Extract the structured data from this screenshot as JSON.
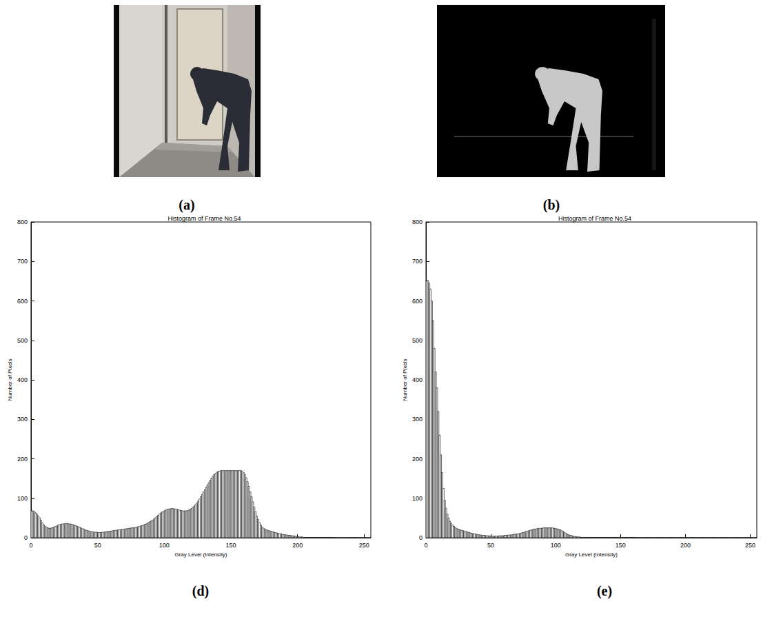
{
  "images": [
    {
      "label": "(a)"
    },
    {
      "label": "(b)"
    }
  ],
  "chart_data": [
    {
      "type": "histogram",
      "title": "Histogram of Frame No.54",
      "x_label": "Gray Level (Intensity)",
      "y_label": "Number of Pixels",
      "annotations": [
        "(d)"
      ],
      "color": "#000000",
      "grid": false,
      "xlim": [
        0,
        255
      ],
      "xticks": [
        0,
        50,
        100,
        150,
        200,
        250
      ],
      "ylim": [
        0,
        800
      ],
      "yticks": [
        0,
        100,
        200,
        300,
        400,
        500,
        600,
        700,
        800
      ],
      "bins": [
        0,
        1,
        2,
        3,
        4,
        5,
        6,
        7,
        8,
        9,
        10,
        11,
        12,
        13,
        14,
        15,
        16,
        17,
        18,
        19,
        20,
        21,
        22,
        23,
        24,
        25,
        26,
        27,
        28,
        29,
        30,
        31,
        32,
        33,
        34,
        35,
        36,
        37,
        38,
        39,
        40,
        41,
        42,
        43,
        44,
        45,
        46,
        47,
        48,
        49,
        50,
        51,
        52,
        53,
        54,
        55,
        56,
        57,
        58,
        59,
        60,
        61,
        62,
        63,
        64,
        65,
        66,
        67,
        68,
        69,
        70,
        71,
        72,
        73,
        74,
        75,
        76,
        77,
        78,
        79,
        80,
        81,
        82,
        83,
        84,
        85,
        86,
        87,
        88,
        89,
        90,
        91,
        92,
        93,
        94,
        95,
        96,
        97,
        98,
        99,
        100,
        101,
        102,
        103,
        104,
        105,
        106,
        107,
        108,
        109,
        110,
        111,
        112,
        113,
        114,
        115,
        116,
        117,
        118,
        119,
        120,
        121,
        122,
        123,
        124,
        125,
        126,
        127,
        128,
        129,
        130,
        131,
        132,
        133,
        134,
        135,
        136,
        137,
        138,
        139,
        140,
        141,
        142,
        143,
        144,
        145,
        146,
        147,
        148,
        149,
        150,
        151,
        152,
        153,
        154,
        155,
        156,
        157,
        158,
        159,
        160,
        161,
        162,
        163,
        164,
        165,
        166,
        167,
        168,
        169,
        170,
        171,
        172,
        173,
        174,
        175,
        176,
        177,
        178,
        179,
        180,
        181,
        182,
        183,
        184,
        185,
        186,
        187,
        188,
        189,
        190,
        191,
        192,
        193,
        194,
        195,
        196,
        197,
        198,
        199,
        200,
        201,
        202,
        203,
        204,
        205,
        206,
        207,
        208,
        209,
        210,
        211,
        212,
        213,
        214,
        215,
        216,
        217,
        218,
        219,
        220,
        221,
        222,
        223,
        224,
        225,
        226,
        227,
        228,
        229,
        230,
        231,
        232,
        233,
        234,
        235,
        236,
        237,
        238,
        239,
        240,
        241,
        242,
        243,
        244,
        245,
        246,
        247,
        248,
        249,
        250,
        251,
        252,
        253,
        254,
        255,
        256
      ],
      "values": [
        68,
        68,
        66,
        63,
        60,
        55,
        50,
        44,
        38,
        33,
        29,
        27,
        25,
        24,
        24,
        25,
        26,
        27,
        29,
        30,
        32,
        33,
        34,
        35,
        35,
        36,
        36,
        36,
        35,
        35,
        34,
        33,
        32,
        31,
        29,
        28,
        26,
        25,
        23,
        22,
        20,
        19,
        18,
        17,
        16,
        15,
        15,
        14,
        14,
        14,
        13,
        13,
        13,
        14,
        14,
        15,
        15,
        16,
        16,
        17,
        17,
        18,
        18,
        19,
        19,
        20,
        20,
        21,
        21,
        22,
        22,
        23,
        23,
        24,
        24,
        25,
        25,
        26,
        26,
        27,
        28,
        29,
        30,
        31,
        32,
        34,
        35,
        37,
        39,
        41,
        43,
        45,
        48,
        51,
        54,
        57,
        60,
        63,
        65,
        67,
        69,
        71,
        72,
        73,
        73,
        74,
        74,
        73,
        73,
        72,
        71,
        70,
        69,
        68,
        68,
        68,
        68,
        69,
        70,
        72,
        74,
        77,
        80,
        84,
        88,
        93,
        98,
        104,
        110,
        116,
        122,
        128,
        134,
        140,
        146,
        151,
        156,
        160,
        163,
        166,
        168,
        169,
        170,
        170,
        170,
        170,
        170,
        170,
        170,
        170,
        170,
        170,
        170,
        170,
        170,
        170,
        170,
        170,
        168,
        165,
        160,
        152,
        142,
        130,
        117,
        104,
        91,
        78,
        66,
        55,
        46,
        38,
        32,
        27,
        24,
        22,
        20,
        19,
        18,
        17,
        16,
        15,
        14,
        13,
        12,
        11,
        10,
        10,
        9,
        8,
        8,
        7,
        7,
        6,
        6,
        5,
        5,
        4,
        4,
        3,
        3,
        2,
        2,
        2,
        1,
        1,
        1,
        1,
        1,
        1,
        1,
        1,
        1,
        1,
        1,
        1,
        1,
        1,
        1,
        1,
        1,
        1,
        1,
        1,
        1,
        1,
        0,
        0,
        0,
        0,
        0,
        0,
        0,
        0,
        0,
        0,
        0,
        0,
        0,
        0,
        0,
        0,
        0,
        0,
        0,
        0,
        0,
        0,
        0,
        0,
        0,
        0,
        0,
        0,
        0,
        0
      ]
    },
    {
      "type": "histogram",
      "title": "Histogram of Frame No.54",
      "x_label": "Gray Level (Intensity)",
      "y_label": "Number of Pixels",
      "annotations": [
        "(e)"
      ],
      "color": "#000000",
      "grid": false,
      "xlim": [
        0,
        255
      ],
      "xticks": [
        0,
        50,
        100,
        150,
        200,
        250
      ],
      "ylim": [
        0,
        800
      ],
      "yticks": [
        0,
        100,
        200,
        300,
        400,
        500,
        600,
        700,
        800
      ],
      "bins": [
        0,
        1,
        2,
        3,
        4,
        5,
        6,
        7,
        8,
        9,
        10,
        11,
        12,
        13,
        14,
        15,
        16,
        17,
        18,
        19,
        20,
        21,
        22,
        23,
        24,
        25,
        26,
        27,
        28,
        29,
        30,
        31,
        32,
        33,
        34,
        35,
        36,
        37,
        38,
        39,
        40,
        41,
        42,
        43,
        44,
        45,
        46,
        47,
        48,
        49,
        50,
        51,
        52,
        53,
        54,
        55,
        56,
        57,
        58,
        59,
        60,
        61,
        62,
        63,
        64,
        65,
        66,
        67,
        68,
        69,
        70,
        71,
        72,
        73,
        74,
        75,
        76,
        77,
        78,
        79,
        80,
        81,
        82,
        83,
        84,
        85,
        86,
        87,
        88,
        89,
        90,
        91,
        92,
        93,
        94,
        95,
        96,
        97,
        98,
        99,
        100,
        101,
        102,
        103,
        104,
        105,
        106,
        107,
        108,
        109,
        110,
        111,
        112,
        113,
        114,
        115,
        116,
        117,
        118,
        119,
        120,
        121,
        122,
        123,
        124,
        125,
        126,
        127,
        128,
        129,
        130,
        131,
        132,
        133,
        134,
        135,
        136,
        137,
        138,
        139,
        140,
        141,
        142,
        143,
        144,
        145,
        146,
        147,
        148,
        149,
        150,
        151,
        152,
        153,
        154,
        155,
        156,
        157,
        158,
        159,
        160,
        161,
        162,
        163,
        164,
        165,
        166,
        167,
        168,
        169,
        170,
        171,
        172,
        173,
        174,
        175,
        176,
        177,
        178,
        179,
        180,
        181,
        182,
        183,
        184,
        185,
        186,
        187,
        188,
        189,
        190,
        191,
        192,
        193,
        194,
        195,
        196,
        197,
        198,
        199,
        200,
        201,
        202,
        203,
        204,
        205,
        206,
        207,
        208,
        209,
        210,
        211,
        212,
        213,
        214,
        215,
        216,
        217,
        218,
        219,
        220,
        221,
        222,
        223,
        224,
        225,
        226,
        227,
        228,
        229,
        230,
        231,
        232,
        233,
        234,
        235,
        236,
        237,
        238,
        239,
        240,
        241,
        242,
        243,
        244,
        245,
        246,
        247,
        248,
        249,
        250,
        251,
        252,
        253,
        254,
        255,
        256
      ],
      "values": [
        650,
        652,
        645,
        630,
        600,
        550,
        480,
        420,
        380,
        320,
        260,
        210,
        165,
        125,
        95,
        75,
        60,
        50,
        42,
        36,
        32,
        29,
        26,
        24,
        22,
        21,
        20,
        19,
        18,
        17,
        16,
        15,
        14,
        13,
        12,
        11,
        10,
        10,
        9,
        8,
        8,
        7,
        7,
        6,
        6,
        6,
        5,
        5,
        5,
        4,
        4,
        4,
        4,
        4,
        4,
        4,
        5,
        5,
        5,
        5,
        6,
        6,
        6,
        7,
        7,
        7,
        8,
        8,
        9,
        9,
        10,
        10,
        11,
        12,
        13,
        14,
        15,
        16,
        17,
        18,
        19,
        20,
        21,
        22,
        22,
        23,
        23,
        24,
        24,
        24,
        25,
        25,
        25,
        25,
        25,
        25,
        25,
        25,
        24,
        24,
        23,
        22,
        21,
        20,
        18,
        16,
        14,
        12,
        10,
        8,
        7,
        6,
        5,
        4,
        3,
        3,
        2,
        2,
        2,
        1,
        1,
        1,
        1,
        1,
        1,
        1,
        1,
        1,
        1,
        1,
        1,
        1,
        1,
        1,
        1,
        1,
        1,
        1,
        1,
        1,
        1,
        1,
        1,
        1,
        1,
        1,
        1,
        1,
        1,
        1,
        1,
        1,
        1,
        1,
        1,
        1,
        1,
        1,
        1,
        1,
        1,
        0,
        0,
        0,
        0,
        0,
        0,
        0,
        0,
        0,
        0,
        0,
        0,
        0,
        0,
        0,
        0,
        0,
        0,
        0,
        0,
        0,
        0,
        0,
        0,
        0,
        0,
        0,
        0,
        0,
        0,
        0,
        0,
        0,
        0,
        0,
        0,
        0,
        0,
        0,
        0,
        0,
        0,
        0,
        0,
        0,
        0,
        0,
        0,
        0,
        0,
        0,
        0,
        0,
        0,
        0,
        0,
        0,
        0,
        0,
        0,
        0,
        0,
        0,
        0,
        0,
        0,
        0,
        0,
        0,
        0,
        0,
        0,
        0,
        0,
        0,
        0,
        0,
        0,
        0,
        0,
        0,
        0,
        0,
        0,
        0,
        0,
        0,
        0,
        0,
        0,
        0,
        0,
        0,
        0,
        0
      ]
    }
  ]
}
